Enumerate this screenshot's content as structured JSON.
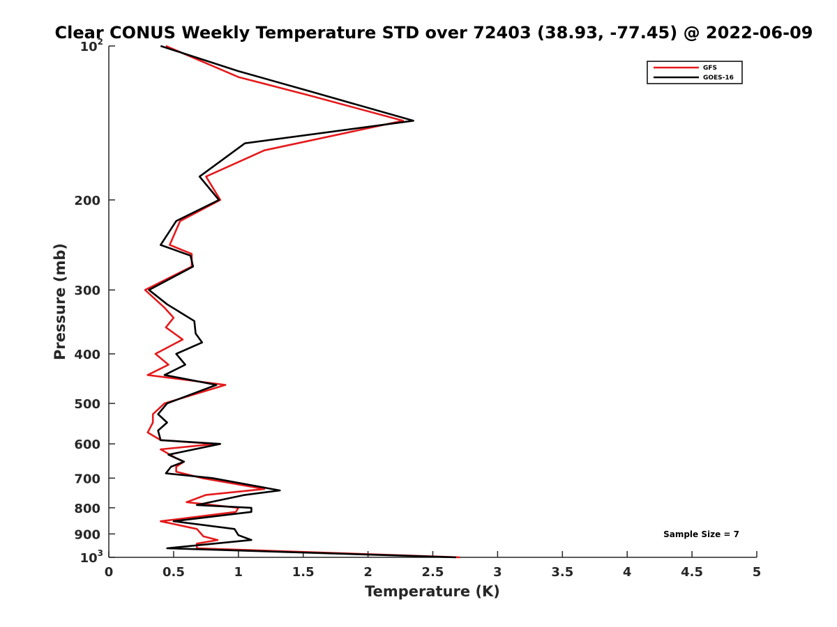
{
  "chart_data": {
    "type": "line",
    "title": "Clear CONUS Weekly Temperature STD over 72403 (38.93, -77.45) @ 2022-06-09",
    "xlabel": "Temperature (K)",
    "ylabel": "Pressure (mb)",
    "xlim": [
      0,
      5
    ],
    "ylim": [
      100,
      1000
    ],
    "yscale": "log",
    "y_inverted": true,
    "grid": false,
    "legend_position": "top-right",
    "x_ticks": [
      {
        "value": 0,
        "label": "0"
      },
      {
        "value": 0.5,
        "label": "0.5"
      },
      {
        "value": 1,
        "label": "1"
      },
      {
        "value": 1.5,
        "label": "1.5"
      },
      {
        "value": 2,
        "label": "2"
      },
      {
        "value": 2.5,
        "label": "2.5"
      },
      {
        "value": 3,
        "label": "3"
      },
      {
        "value": 3.5,
        "label": "3.5"
      },
      {
        "value": 4,
        "label": "4"
      },
      {
        "value": 4.5,
        "label": "4.5"
      },
      {
        "value": 5,
        "label": "5"
      }
    ],
    "y_ticks": [
      {
        "value": 100,
        "base": "10",
        "exp": "2"
      },
      {
        "value": 200,
        "label": "200"
      },
      {
        "value": 300,
        "label": "300"
      },
      {
        "value": 400,
        "label": "400"
      },
      {
        "value": 500,
        "label": "500"
      },
      {
        "value": 600,
        "label": "600"
      },
      {
        "value": 700,
        "label": "700"
      },
      {
        "value": 800,
        "label": "800"
      },
      {
        "value": 900,
        "label": "900"
      },
      {
        "value": 1000,
        "base": "10",
        "exp": "3"
      }
    ],
    "annotation": "Sample Size = 7",
    "series": [
      {
        "name": "GFS",
        "color": "#e41a1c",
        "points": [
          {
            "x": 0.44,
            "y": 100
          },
          {
            "x": 1.0,
            "y": 115
          },
          {
            "x": 1.55,
            "y": 125
          },
          {
            "x": 2.27,
            "y": 140
          },
          {
            "x": 1.2,
            "y": 160
          },
          {
            "x": 0.75,
            "y": 180
          },
          {
            "x": 0.86,
            "y": 200
          },
          {
            "x": 0.55,
            "y": 220
          },
          {
            "x": 0.47,
            "y": 245
          },
          {
            "x": 0.64,
            "y": 255
          },
          {
            "x": 0.64,
            "y": 270
          },
          {
            "x": 0.28,
            "y": 300
          },
          {
            "x": 0.43,
            "y": 325
          },
          {
            "x": 0.5,
            "y": 340
          },
          {
            "x": 0.44,
            "y": 355
          },
          {
            "x": 0.57,
            "y": 375
          },
          {
            "x": 0.36,
            "y": 400
          },
          {
            "x": 0.46,
            "y": 420
          },
          {
            "x": 0.3,
            "y": 440
          },
          {
            "x": 0.9,
            "y": 460
          },
          {
            "x": 0.43,
            "y": 500
          },
          {
            "x": 0.34,
            "y": 525
          },
          {
            "x": 0.34,
            "y": 545
          },
          {
            "x": 0.3,
            "y": 570
          },
          {
            "x": 0.4,
            "y": 590
          },
          {
            "x": 0.82,
            "y": 600
          },
          {
            "x": 0.4,
            "y": 615
          },
          {
            "x": 0.52,
            "y": 640
          },
          {
            "x": 0.58,
            "y": 650
          },
          {
            "x": 0.52,
            "y": 665
          },
          {
            "x": 0.52,
            "y": 680
          },
          {
            "x": 0.72,
            "y": 700
          },
          {
            "x": 1.2,
            "y": 735
          },
          {
            "x": 0.75,
            "y": 755
          },
          {
            "x": 0.6,
            "y": 780
          },
          {
            "x": 1.0,
            "y": 800
          },
          {
            "x": 0.98,
            "y": 815
          },
          {
            "x": 0.4,
            "y": 850
          },
          {
            "x": 0.68,
            "y": 880
          },
          {
            "x": 0.73,
            "y": 910
          },
          {
            "x": 0.84,
            "y": 925
          },
          {
            "x": 0.68,
            "y": 940
          },
          {
            "x": 0.68,
            "y": 960
          },
          {
            "x": 2.71,
            "y": 1000
          }
        ]
      },
      {
        "name": "GOES-16",
        "color": "#000000",
        "points": [
          {
            "x": 0.4,
            "y": 100
          },
          {
            "x": 1.0,
            "y": 112
          },
          {
            "x": 1.57,
            "y": 123
          },
          {
            "x": 2.35,
            "y": 140
          },
          {
            "x": 1.05,
            "y": 155
          },
          {
            "x": 0.7,
            "y": 180
          },
          {
            "x": 0.85,
            "y": 200
          },
          {
            "x": 0.52,
            "y": 220
          },
          {
            "x": 0.4,
            "y": 245
          },
          {
            "x": 0.63,
            "y": 257
          },
          {
            "x": 0.65,
            "y": 270
          },
          {
            "x": 0.31,
            "y": 300
          },
          {
            "x": 0.45,
            "y": 320
          },
          {
            "x": 0.66,
            "y": 345
          },
          {
            "x": 0.67,
            "y": 365
          },
          {
            "x": 0.72,
            "y": 380
          },
          {
            "x": 0.52,
            "y": 400
          },
          {
            "x": 0.59,
            "y": 420
          },
          {
            "x": 0.43,
            "y": 440
          },
          {
            "x": 0.83,
            "y": 460
          },
          {
            "x": 0.45,
            "y": 500
          },
          {
            "x": 0.38,
            "y": 525
          },
          {
            "x": 0.45,
            "y": 545
          },
          {
            "x": 0.38,
            "y": 565
          },
          {
            "x": 0.4,
            "y": 590
          },
          {
            "x": 0.86,
            "y": 600
          },
          {
            "x": 0.46,
            "y": 630
          },
          {
            "x": 0.58,
            "y": 650
          },
          {
            "x": 0.48,
            "y": 665
          },
          {
            "x": 0.44,
            "y": 685
          },
          {
            "x": 0.8,
            "y": 700
          },
          {
            "x": 1.32,
            "y": 740
          },
          {
            "x": 1.05,
            "y": 755
          },
          {
            "x": 0.68,
            "y": 790
          },
          {
            "x": 1.1,
            "y": 800
          },
          {
            "x": 1.1,
            "y": 815
          },
          {
            "x": 0.5,
            "y": 850
          },
          {
            "x": 0.97,
            "y": 880
          },
          {
            "x": 1.0,
            "y": 905
          },
          {
            "x": 1.1,
            "y": 925
          },
          {
            "x": 0.45,
            "y": 960
          },
          {
            "x": 2.68,
            "y": 1000
          }
        ]
      }
    ]
  }
}
